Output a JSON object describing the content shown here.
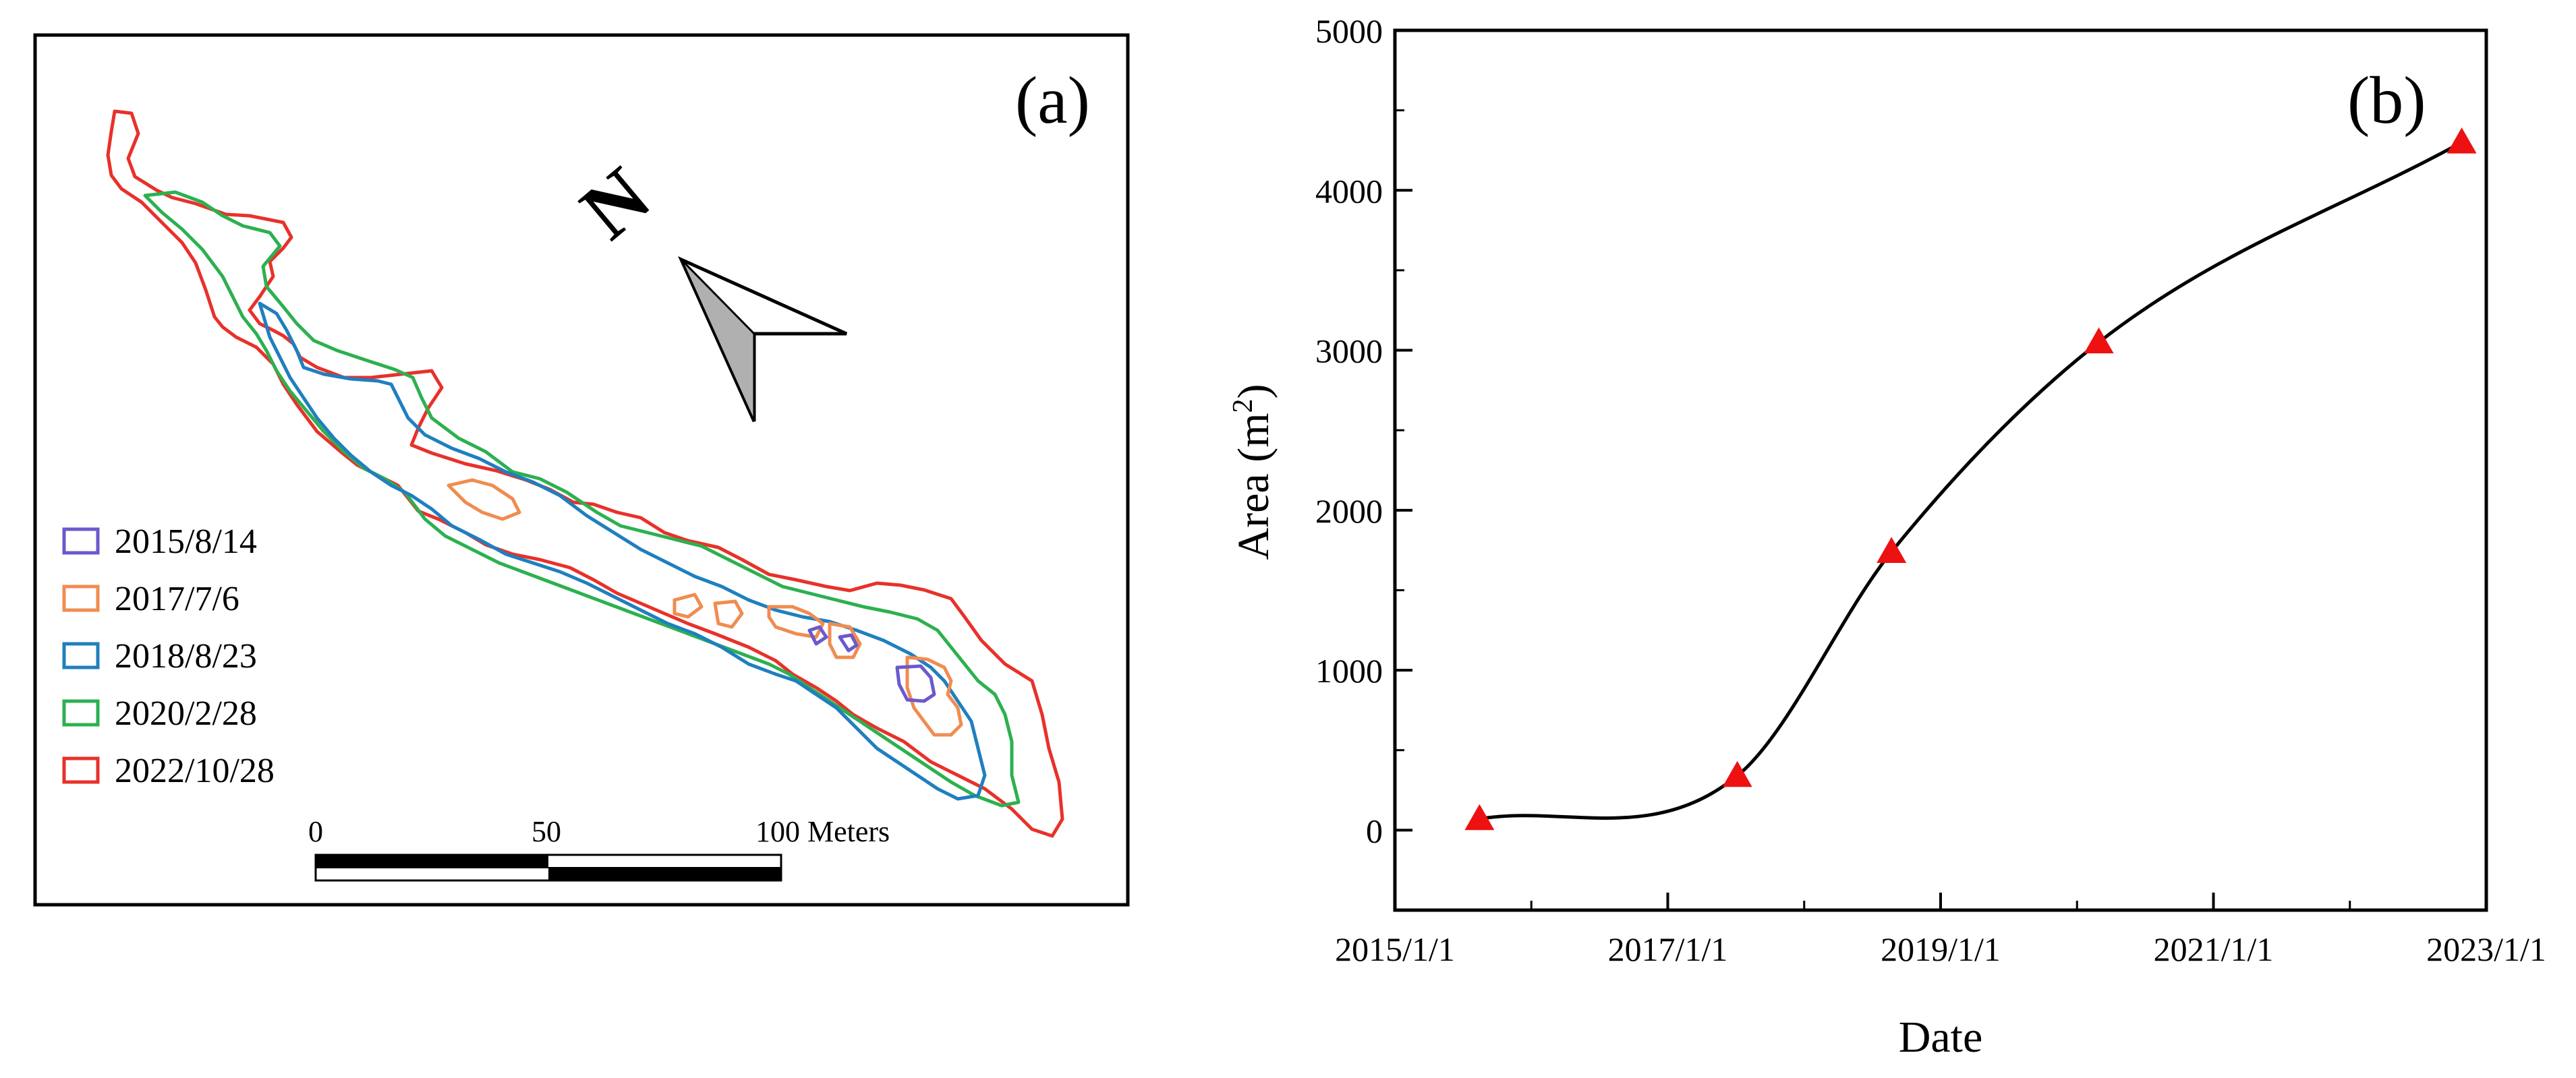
{
  "colors": {
    "c2015": "#6a5acd",
    "c2017": "#f08c50",
    "c2018": "#1f7fbf",
    "c2020": "#2db050",
    "c2022": "#e8312a",
    "marker": "#ee1111"
  },
  "chart_data": [
    {
      "type": "map",
      "panel_label": "(a)",
      "north_label": "N",
      "legend": [
        {
          "label": "2015/8/14",
          "color_key": "c2015"
        },
        {
          "label": "2017/7/6",
          "color_key": "c2017"
        },
        {
          "label": "2018/8/23",
          "color_key": "c2018"
        },
        {
          "label": "2020/2/28",
          "color_key": "c2020"
        },
        {
          "label": "2022/10/28",
          "color_key": "c2022"
        }
      ],
      "scale_bar": {
        "ticks": [
          "0",
          "50",
          "100 Meters"
        ],
        "tick_values": [
          0,
          50,
          100
        ]
      }
    },
    {
      "type": "line",
      "panel_label": "(b)",
      "xlabel": "Date",
      "ylabel_main": "Area (m",
      "ylabel_sup": "2",
      "ylabel_close": ")",
      "xlim": [
        2015.0,
        2023.0
      ],
      "ylim": [
        -500,
        5000
      ],
      "x_ticks": [
        2015,
        2017,
        2019,
        2021,
        2023
      ],
      "x_tick_labels": [
        "2015/1/1",
        "2017/1/1",
        "2019/1/1",
        "2021/1/1",
        "2023/1/1"
      ],
      "y_ticks": [
        0,
        1000,
        2000,
        3000,
        4000,
        5000
      ],
      "y_tick_labels": [
        "0",
        "1000",
        "2000",
        "3000",
        "4000",
        "5000"
      ],
      "points": [
        {
          "date": "2015/8/14",
          "x": 2015.62,
          "area": 70
        },
        {
          "date": "2017/7/6",
          "x": 2017.51,
          "area": 340
        },
        {
          "date": "2018/8/23",
          "x": 2018.64,
          "area": 1740
        },
        {
          "date": "2020/2/28",
          "x": 2020.16,
          "area": 3050
        },
        {
          "date": "2022/10/28",
          "x": 2022.82,
          "area": 4300
        }
      ]
    }
  ]
}
